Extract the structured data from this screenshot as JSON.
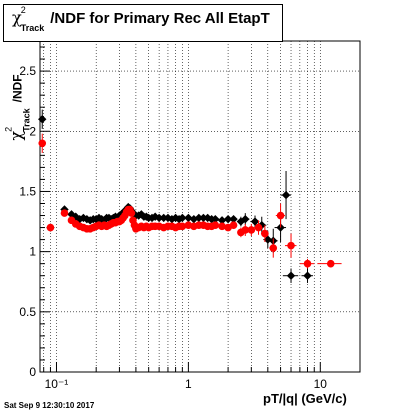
{
  "title": {
    "prefix": "χ",
    "sup": "2",
    "sub": "Track",
    "rest": "/NDF for Primary Rec All EtapT"
  },
  "axis": {
    "xlabel": "pT/|q| (GeV/c)",
    "ylabel_prefix": "χ",
    "ylabel_sup": "2",
    "ylabel_sub": "Track",
    "ylabel_rest": "/NDF"
  },
  "footer": "Sat Sep  9 12:30:10 2017",
  "chart_data": {
    "type": "scatter",
    "title": "χ²_Track/NDF for Primary Rec All EtapT",
    "xlabel": "pT/|q| (GeV/c)",
    "ylabel": "χ²_Track/NDF",
    "xscale": "log",
    "xlim": [
      0.075,
      20
    ],
    "ylim": [
      0,
      2.75
    ],
    "grid": true,
    "xticks": [
      {
        "value": 0.1,
        "label": "10⁻¹"
      },
      {
        "value": 1,
        "label": "1"
      },
      {
        "value": 10,
        "label": "10"
      }
    ],
    "yticks": [
      {
        "value": 0,
        "label": "0"
      },
      {
        "value": 0.5,
        "label": "0.5"
      },
      {
        "value": 1,
        "label": "1"
      },
      {
        "value": 1.5,
        "label": "1.5"
      },
      {
        "value": 2,
        "label": "2"
      },
      {
        "value": 2.5,
        "label": "2.5"
      }
    ],
    "series": [
      {
        "color": "#000000",
        "marker": "diamond",
        "x": [
          0.078,
          0.09,
          0.115,
          0.13,
          0.14,
          0.15,
          0.16,
          0.17,
          0.18,
          0.19,
          0.2,
          0.21,
          0.22,
          0.23,
          0.24,
          0.25,
          0.26,
          0.27,
          0.28,
          0.29,
          0.3,
          0.31,
          0.32,
          0.33,
          0.34,
          0.35,
          0.36,
          0.37,
          0.38,
          0.39,
          0.4,
          0.42,
          0.44,
          0.46,
          0.48,
          0.5,
          0.53,
          0.56,
          0.6,
          0.65,
          0.7,
          0.75,
          0.8,
          0.85,
          0.9,
          1.0,
          1.1,
          1.2,
          1.3,
          1.4,
          1.5,
          1.6,
          1.8,
          2.0,
          2.2,
          2.5,
          2.7,
          3.2,
          3.6,
          4.0,
          4.4,
          5.0,
          5.5,
          6.0,
          8.0
        ],
        "y": [
          2.1,
          1.2,
          1.35,
          1.31,
          1.29,
          1.27,
          1.28,
          1.27,
          1.26,
          1.27,
          1.27,
          1.28,
          1.27,
          1.26,
          1.28,
          1.28,
          1.27,
          1.28,
          1.29,
          1.28,
          1.3,
          1.31,
          1.32,
          1.34,
          1.35,
          1.37,
          1.36,
          1.34,
          1.32,
          1.31,
          1.3,
          1.3,
          1.31,
          1.29,
          1.29,
          1.28,
          1.28,
          1.29,
          1.28,
          1.28,
          1.28,
          1.27,
          1.28,
          1.27,
          1.28,
          1.28,
          1.27,
          1.28,
          1.28,
          1.28,
          1.27,
          1.27,
          1.26,
          1.27,
          1.27,
          1.25,
          1.27,
          1.25,
          1.22,
          1.1,
          1.09,
          1.2,
          1.47,
          0.8,
          0.8
        ],
        "xerr": [
          0,
          0,
          0,
          0,
          0,
          0,
          0,
          0,
          0,
          0,
          0,
          0,
          0,
          0,
          0,
          0,
          0,
          0,
          0,
          0,
          0,
          0,
          0,
          0,
          0,
          0,
          0,
          0,
          0,
          0,
          0,
          0,
          0,
          0,
          0,
          0,
          0,
          0,
          0,
          0,
          0,
          0,
          0,
          0,
          0,
          0,
          0,
          0,
          0,
          0,
          0,
          0,
          0,
          0,
          0,
          0.15,
          0.2,
          0.25,
          0.3,
          0.3,
          0.35,
          0.5,
          0.5,
          0.8,
          0.8
        ],
        "yerr": [
          0.08,
          0.02,
          0.02,
          0.01,
          0.01,
          0.01,
          0.01,
          0.01,
          0.01,
          0.01,
          0.01,
          0.01,
          0.01,
          0.01,
          0.01,
          0.01,
          0.01,
          0.01,
          0.01,
          0.01,
          0.01,
          0.01,
          0.01,
          0.01,
          0.01,
          0.01,
          0.01,
          0.01,
          0.01,
          0.01,
          0.01,
          0.01,
          0.01,
          0.01,
          0.01,
          0.01,
          0.01,
          0.01,
          0.01,
          0.01,
          0.01,
          0.01,
          0.01,
          0.01,
          0.01,
          0.01,
          0.01,
          0.01,
          0.01,
          0.01,
          0.01,
          0.01,
          0.02,
          0.02,
          0.03,
          0.04,
          0.05,
          0.05,
          0.07,
          0.07,
          0.1,
          0.12,
          0.2,
          0.06,
          0.06
        ]
      },
      {
        "color": "#ff0000",
        "marker": "circle",
        "x": [
          0.078,
          0.09,
          0.115,
          0.13,
          0.14,
          0.15,
          0.16,
          0.17,
          0.18,
          0.19,
          0.2,
          0.21,
          0.22,
          0.23,
          0.24,
          0.25,
          0.26,
          0.27,
          0.28,
          0.29,
          0.3,
          0.31,
          0.32,
          0.33,
          0.34,
          0.35,
          0.36,
          0.37,
          0.38,
          0.39,
          0.4,
          0.42,
          0.44,
          0.46,
          0.48,
          0.5,
          0.53,
          0.56,
          0.6,
          0.65,
          0.7,
          0.75,
          0.8,
          0.85,
          0.9,
          1.0,
          1.1,
          1.2,
          1.3,
          1.4,
          1.5,
          1.6,
          1.8,
          2.0,
          2.2,
          2.5,
          2.7,
          3.0,
          3.4,
          3.8,
          4.4,
          5.0,
          6.0,
          8.0,
          12.0
        ],
        "y": [
          1.9,
          1.2,
          1.32,
          1.26,
          1.23,
          1.21,
          1.2,
          1.19,
          1.19,
          1.2,
          1.21,
          1.22,
          1.21,
          1.22,
          1.21,
          1.22,
          1.23,
          1.24,
          1.24,
          1.25,
          1.25,
          1.26,
          1.28,
          1.3,
          1.33,
          1.35,
          1.35,
          1.32,
          1.26,
          1.22,
          1.19,
          1.2,
          1.21,
          1.2,
          1.21,
          1.2,
          1.21,
          1.21,
          1.21,
          1.2,
          1.21,
          1.21,
          1.2,
          1.21,
          1.21,
          1.22,
          1.21,
          1.22,
          1.22,
          1.21,
          1.21,
          1.22,
          1.21,
          1.2,
          1.22,
          1.16,
          1.18,
          1.18,
          1.2,
          1.15,
          1.03,
          1.3,
          1.05,
          0.9,
          0.9
        ],
        "xerr": [
          0,
          0,
          0,
          0,
          0,
          0,
          0,
          0,
          0,
          0,
          0,
          0,
          0,
          0,
          0,
          0,
          0,
          0,
          0,
          0,
          0,
          0,
          0,
          0,
          0,
          0,
          0,
          0,
          0,
          0,
          0,
          0,
          0,
          0,
          0,
          0,
          0,
          0,
          0,
          0,
          0,
          0,
          0,
          0,
          0,
          0,
          0,
          0,
          0,
          0,
          0,
          0,
          0,
          0,
          0,
          0.1,
          0.15,
          0.2,
          0.25,
          0.25,
          0.3,
          0.4,
          0.6,
          1.0,
          2.5
        ],
        "yerr": [
          0.08,
          0.02,
          0.02,
          0.01,
          0.01,
          0.01,
          0.01,
          0.01,
          0.01,
          0.01,
          0.01,
          0.01,
          0.01,
          0.01,
          0.01,
          0.01,
          0.01,
          0.01,
          0.01,
          0.01,
          0.01,
          0.01,
          0.01,
          0.01,
          0.01,
          0.01,
          0.01,
          0.01,
          0.01,
          0.01,
          0.01,
          0.01,
          0.01,
          0.01,
          0.01,
          0.01,
          0.01,
          0.01,
          0.01,
          0.01,
          0.01,
          0.01,
          0.01,
          0.01,
          0.01,
          0.01,
          0.01,
          0.01,
          0.01,
          0.01,
          0.01,
          0.01,
          0.02,
          0.02,
          0.03,
          0.04,
          0.05,
          0.05,
          0.06,
          0.07,
          0.08,
          0.1,
          0.1,
          0.04,
          0.03
        ]
      }
    ]
  }
}
